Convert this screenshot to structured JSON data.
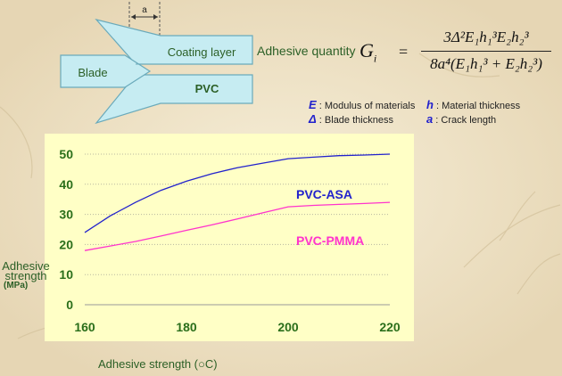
{
  "diagram": {
    "gap_label": "a",
    "blade_label": "Blade",
    "coating_label": "Coating layer",
    "pvc_label": "PVC"
  },
  "formula": {
    "lead": "Adhesive quantity",
    "symbol": "G",
    "subscript": "i",
    "equals": "=",
    "numerator": "3Δ²E₁h₁³E₂h₂³",
    "denominator": "8a⁴(E₁h₁³ + E₂h₂³)"
  },
  "legend": {
    "e_symbol": "E",
    "e_text": ": Modulus of materials",
    "h_symbol": "h",
    "h_text": ": Material thickness",
    "delta_symbol": "Δ",
    "delta_text": ": Blade thickness",
    "a_symbol": "a",
    "a_text": ": Crack length"
  },
  "colors": {
    "asa": "#2222cc",
    "pmma": "#ff33cc",
    "panel": "#ffffc6",
    "axis_text": "#2a6e1a",
    "diagram_fill": "#c6ecf2",
    "diagram_stroke": "#6aaabb"
  },
  "chart_data": {
    "type": "line",
    "xlabel": "Adhesive strength (○C)",
    "ylabel": [
      "Adhesive",
      "strength",
      "(MPa)"
    ],
    "xlim": [
      160,
      220
    ],
    "ylim": [
      0,
      50
    ],
    "xticks": [
      160,
      180,
      200,
      220
    ],
    "yticks": [
      0,
      10,
      20,
      30,
      40,
      50
    ],
    "grid": "horizontal dotted",
    "series": [
      {
        "name": "PVC-ASA",
        "color": "#2222cc",
        "x": [
          160,
          165,
          170,
          175,
          180,
          185,
          190,
          195,
          200,
          205,
          210,
          215,
          220
        ],
        "y": [
          24,
          29.5,
          34,
          38,
          41,
          43.5,
          45.5,
          47,
          48.5,
          49,
          49.5,
          49.7,
          50
        ]
      },
      {
        "name": "PVC-PMMA",
        "color": "#ff33cc",
        "x": [
          160,
          165,
          170,
          175,
          180,
          185,
          190,
          195,
          200,
          205,
          210,
          215,
          220
        ],
        "y": [
          18,
          19.5,
          21,
          22.8,
          24.7,
          26.5,
          28.5,
          30.5,
          32.5,
          33,
          33.3,
          33.6,
          34
        ]
      }
    ]
  }
}
